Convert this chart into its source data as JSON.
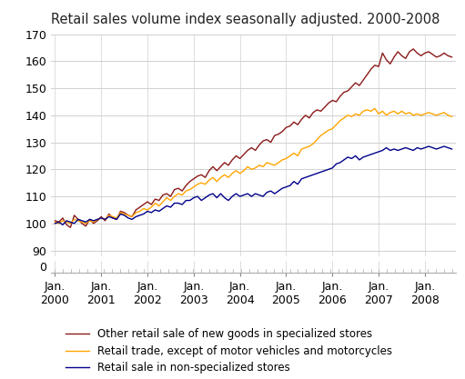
{
  "title": "Retail sales volume index seasonally adjusted. 2000-2008",
  "colors": {
    "specialized": "#8B1A1A",
    "trade": "#FFA500",
    "non_specialized": "#00008B"
  },
  "legend": [
    "Other retail sale of new goods in specialized stores",
    "Retail trade, except of motor vehicles and motorcycles",
    "Retail sale in non-specialized stores"
  ],
  "background_color": "#ffffff",
  "grid_color": "#d0d0d0",
  "title_fontsize": 10.5,
  "legend_fontsize": 8.5,
  "tick_fontsize": 9,
  "series_specialized": [
    101.0,
    100.5,
    102.0,
    99.5,
    98.5,
    103.0,
    101.5,
    100.0,
    99.0,
    101.5,
    100.0,
    101.0,
    102.5,
    101.0,
    103.5,
    102.0,
    101.5,
    104.5,
    104.0,
    103.0,
    102.5,
    105.0,
    106.0,
    107.0,
    108.0,
    107.0,
    109.0,
    108.5,
    110.5,
    111.0,
    110.0,
    112.5,
    113.0,
    112.0,
    114.0,
    115.5,
    116.5,
    117.5,
    118.0,
    117.0,
    119.5,
    121.0,
    119.5,
    121.0,
    122.5,
    121.5,
    123.5,
    125.0,
    124.0,
    125.5,
    127.0,
    128.0,
    127.0,
    129.0,
    130.5,
    131.0,
    130.0,
    132.5,
    133.0,
    134.0,
    135.5,
    136.0,
    137.5,
    136.5,
    138.5,
    140.0,
    139.0,
    141.0,
    142.0,
    141.5,
    143.0,
    144.5,
    145.5,
    145.0,
    147.0,
    148.5,
    149.0,
    150.5,
    152.0,
    151.0,
    153.0,
    155.0,
    157.0,
    158.5,
    158.0,
    163.0,
    160.5,
    159.0,
    161.5,
    163.5,
    162.0,
    161.0,
    163.5,
    164.5,
    163.0,
    162.0,
    163.0,
    163.5,
    162.5,
    161.5,
    162.0,
    163.0,
    162.0,
    161.5
  ],
  "series_trade": [
    100.5,
    100.0,
    101.0,
    100.5,
    100.0,
    101.5,
    101.0,
    100.5,
    100.0,
    101.0,
    100.5,
    101.5,
    102.0,
    101.5,
    103.0,
    102.5,
    102.0,
    104.0,
    103.5,
    103.0,
    102.5,
    104.0,
    104.5,
    105.5,
    105.0,
    106.0,
    107.5,
    106.5,
    108.0,
    109.5,
    108.5,
    110.0,
    111.0,
    110.5,
    112.0,
    112.5,
    113.5,
    114.5,
    115.0,
    114.5,
    116.0,
    117.0,
    115.5,
    117.0,
    118.0,
    117.0,
    118.5,
    119.5,
    118.5,
    119.5,
    121.0,
    120.0,
    120.5,
    121.5,
    121.0,
    122.5,
    122.0,
    121.5,
    122.5,
    123.5,
    124.0,
    125.0,
    126.0,
    125.0,
    127.5,
    128.0,
    128.5,
    129.5,
    131.0,
    132.5,
    133.5,
    134.5,
    135.0,
    136.5,
    138.0,
    139.0,
    140.0,
    139.5,
    140.5,
    140.0,
    141.5,
    142.0,
    141.5,
    142.5,
    140.5,
    141.5,
    140.0,
    141.0,
    141.5,
    140.5,
    141.5,
    140.5,
    141.0,
    140.0,
    140.5,
    140.0,
    140.5,
    141.0,
    140.5,
    140.0,
    140.5,
    141.0,
    140.0,
    139.5
  ],
  "series_non_specialized": [
    100.0,
    100.5,
    99.5,
    101.0,
    100.5,
    100.0,
    101.5,
    101.0,
    100.5,
    101.5,
    101.0,
    101.5,
    102.0,
    101.5,
    102.5,
    102.0,
    101.5,
    103.5,
    103.0,
    102.0,
    101.5,
    102.5,
    103.0,
    103.5,
    104.5,
    104.0,
    105.0,
    104.5,
    105.5,
    106.5,
    106.0,
    107.5,
    107.5,
    107.0,
    108.5,
    108.5,
    109.5,
    110.0,
    108.5,
    109.5,
    110.5,
    111.0,
    109.5,
    111.0,
    109.5,
    108.5,
    110.0,
    111.0,
    110.0,
    110.5,
    111.0,
    110.0,
    111.0,
    110.5,
    110.0,
    111.5,
    112.0,
    111.0,
    112.0,
    113.0,
    113.5,
    114.0,
    115.5,
    114.5,
    116.5,
    117.0,
    117.5,
    118.0,
    118.5,
    119.0,
    119.5,
    120.0,
    120.5,
    122.0,
    122.5,
    123.5,
    124.5,
    124.0,
    125.0,
    123.5,
    124.5,
    125.0,
    125.5,
    126.0,
    126.5,
    127.0,
    128.0,
    127.0,
    127.5,
    127.0,
    127.5,
    128.0,
    127.5,
    127.0,
    128.0,
    127.5,
    128.0,
    128.5,
    128.0,
    127.5,
    128.0,
    128.5,
    128.0,
    127.5
  ]
}
